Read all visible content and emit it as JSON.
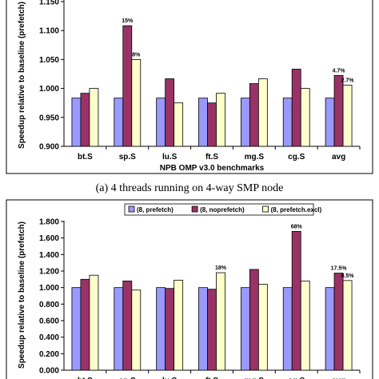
{
  "chart_data": [
    {
      "type": "bar",
      "caption": "(a) 4 threads running on 4-way SMP node",
      "xlabel": "NPB OMP v3.0 benchmarks",
      "ylabel": "Speedup relative to baseline (prefetch)",
      "ylim": [
        0.9,
        1.2
      ],
      "yticks": [
        "0.900",
        "0.950",
        "1.000",
        "1.050",
        "1.100",
        "1.150"
      ],
      "categories": [
        "bt.S",
        "sp.S",
        "lu.S",
        "ft.S",
        "mg.S",
        "cg.S",
        "avg"
      ],
      "series": [
        {
          "name": "(8, prefetch)",
          "color": "#9999ff",
          "values": [
            1.0,
            1.0,
            1.0,
            1.0,
            1.0,
            1.0,
            1.0
          ]
        },
        {
          "name": "(8, noprefetch)",
          "color": "#993366",
          "values": [
            1.01,
            1.15,
            1.04,
            0.99,
            1.03,
            1.06,
            1.047
          ]
        },
        {
          "name": "(8, prefetch.excl)",
          "color": "#ffffcc",
          "values": [
            1.02,
            1.08,
            0.99,
            1.01,
            1.04,
            1.02,
            1.027
          ]
        }
      ],
      "annotations": [
        {
          "category": "sp.S",
          "series": 1,
          "text": "15%"
        },
        {
          "category": "sp.S",
          "series": 2,
          "text": "8%"
        },
        {
          "category": "avg",
          "series": 1,
          "text": "4.7%"
        },
        {
          "category": "avg",
          "series": 2,
          "text": "2.7%"
        }
      ],
      "grid": false
    },
    {
      "type": "bar",
      "ylabel": "Speedup relative to baseline (prefetch)",
      "ylim": [
        0,
        1.8
      ],
      "yticks": [
        "0.000",
        "0.200",
        "0.400",
        "0.600",
        "0.800",
        "1.000",
        "1.200",
        "1.400",
        "1.600",
        "1.800"
      ],
      "categories": [
        "bt.S",
        "sp.S",
        "lu.S",
        "ft.S",
        "mg.S",
        "cg.S",
        "avg"
      ],
      "legend": "top",
      "series": [
        {
          "name": "(8, prefetch)",
          "color": "#9999ff",
          "values": [
            1.0,
            1.0,
            1.0,
            1.0,
            1.0,
            1.0,
            1.0
          ]
        },
        {
          "name": "(8, noprefetch)",
          "color": "#993366",
          "values": [
            1.1,
            1.08,
            0.99,
            0.98,
            1.22,
            1.68,
            1.175
          ]
        },
        {
          "name": "(8, prefetch.excl)",
          "color": "#ffffcc",
          "values": [
            1.15,
            0.97,
            1.09,
            1.18,
            1.04,
            1.08,
            1.085
          ]
        }
      ],
      "annotations": [
        {
          "category": "ft.S",
          "series": 2,
          "text": "18%"
        },
        {
          "category": "cg.S",
          "series": 1,
          "text": "68%"
        },
        {
          "category": "avg",
          "series": 1,
          "text": "17.5%"
        },
        {
          "category": "avg",
          "series": 2,
          "text": "8.5%"
        }
      ],
      "grid": false
    }
  ]
}
